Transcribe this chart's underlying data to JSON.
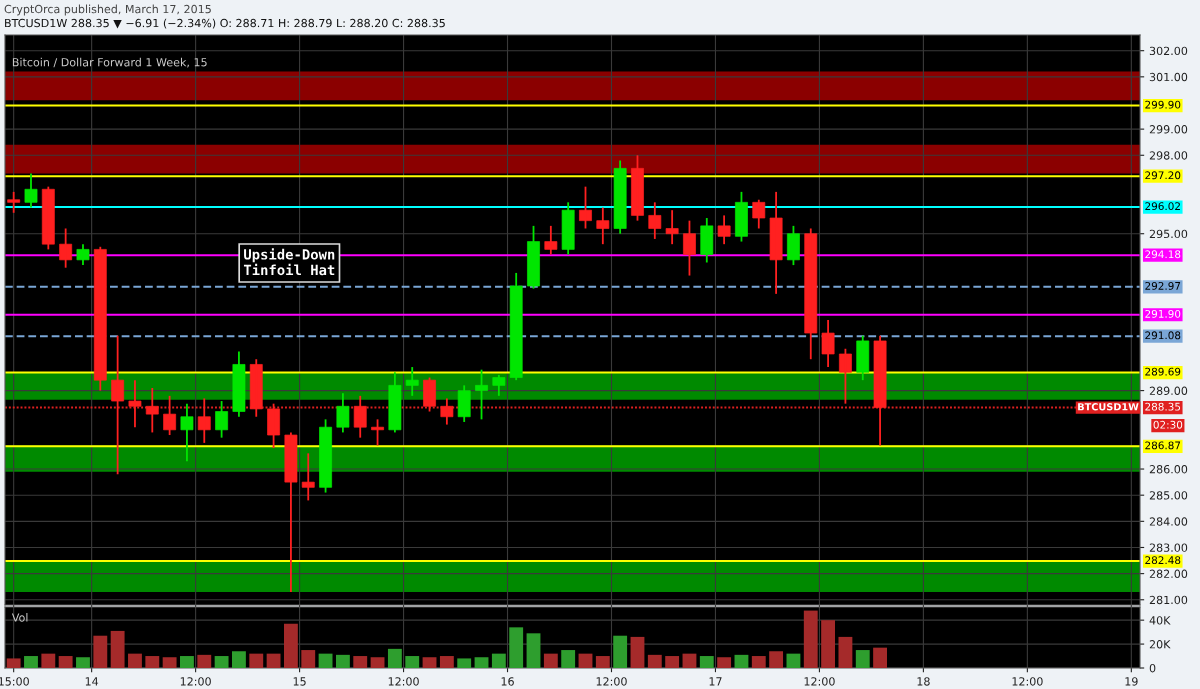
{
  "chart_data": [
    {
      "type": "candlestick",
      "title": "Bitcoin / Dollar Forward 1 Week, 15",
      "subtitle": "BTCUSD1W 288.35 ▼ −6.91 (−2.34%) O: 288.71 H: 288.79 L: 288.20 C: 288.35",
      "annotations": [
        "Upside-Down\nTinfoil Hat",
        "02:30",
        "CryptOrca published, March 17, 2015",
        "BTCUSD1W"
      ],
      "x": [
        "2015-03-13T15:00",
        "2015-03-13T17:00",
        "2015-03-13T19:00",
        "2015-03-13T21:00",
        "2015-03-13T23:00",
        "2015-03-14T01:00",
        "2015-03-14T03:00",
        "2015-03-14T05:00",
        "2015-03-14T07:00",
        "2015-03-14T09:00",
        "2015-03-14T11:00",
        "2015-03-14T13:00",
        "2015-03-14T15:00",
        "2015-03-14T17:00",
        "2015-03-14T19:00",
        "2015-03-14T21:00",
        "2015-03-14T23:00",
        "2015-03-15T01:00",
        "2015-03-15T03:00",
        "2015-03-15T05:00",
        "2015-03-15T07:00",
        "2015-03-15T09:00",
        "2015-03-15T11:00",
        "2015-03-15T13:00",
        "2015-03-15T15:00",
        "2015-03-15T17:00",
        "2015-03-15T19:00",
        "2015-03-15T21:00",
        "2015-03-15T23:00",
        "2015-03-16T01:00",
        "2015-03-16T03:00",
        "2015-03-16T05:00",
        "2015-03-16T07:00",
        "2015-03-16T09:00",
        "2015-03-16T11:00",
        "2015-03-16T13:00",
        "2015-03-16T15:00",
        "2015-03-16T17:00",
        "2015-03-16T19:00",
        "2015-03-16T21:00",
        "2015-03-16T23:00",
        "2015-03-17T01:00",
        "2015-03-17T03:00",
        "2015-03-17T05:00",
        "2015-03-17T07:00",
        "2015-03-17T09:00",
        "2015-03-17T11:00",
        "2015-03-17T13:00",
        "2015-03-17T15:00",
        "2015-03-17T17:00",
        "2015-03-17T19:00"
      ],
      "ohlc": [
        [
          296.3,
          296.6,
          295.8,
          296.2
        ],
        [
          296.2,
          297.3,
          296.0,
          296.7
        ],
        [
          296.7,
          296.8,
          294.4,
          294.6
        ],
        [
          294.6,
          295.2,
          293.7,
          294.0
        ],
        [
          294.0,
          294.6,
          293.8,
          294.4
        ],
        [
          294.4,
          294.5,
          289.0,
          289.4
        ],
        [
          289.4,
          291.1,
          285.8,
          288.6
        ],
        [
          288.6,
          289.4,
          287.6,
          288.4
        ],
        [
          288.4,
          289.1,
          287.4,
          288.1
        ],
        [
          288.1,
          288.8,
          287.3,
          287.5
        ],
        [
          287.5,
          288.5,
          286.3,
          288.0
        ],
        [
          288.0,
          288.7,
          287.0,
          287.5
        ],
        [
          287.5,
          288.6,
          287.2,
          288.2
        ],
        [
          288.2,
          290.5,
          288.0,
          290.0
        ],
        [
          290.0,
          290.2,
          288.0,
          288.3
        ],
        [
          288.3,
          288.5,
          286.8,
          287.3
        ],
        [
          287.3,
          287.4,
          281.3,
          285.5
        ],
        [
          285.5,
          286.6,
          284.8,
          285.3
        ],
        [
          285.3,
          287.9,
          285.1,
          287.6
        ],
        [
          287.6,
          288.9,
          287.4,
          288.4
        ],
        [
          288.4,
          288.8,
          287.2,
          287.6
        ],
        [
          287.6,
          287.9,
          286.9,
          287.5
        ],
        [
          287.5,
          289.7,
          287.4,
          289.2
        ],
        [
          289.2,
          289.9,
          288.8,
          289.4
        ],
        [
          289.4,
          289.5,
          288.2,
          288.4
        ],
        [
          288.4,
          288.7,
          287.7,
          288.0
        ],
        [
          288.0,
          289.2,
          287.8,
          289.0
        ],
        [
          289.0,
          289.8,
          287.9,
          289.2
        ],
        [
          289.2,
          289.6,
          288.8,
          289.5
        ],
        [
          289.5,
          293.5,
          289.4,
          293.0
        ],
        [
          293.0,
          295.3,
          292.9,
          294.7
        ],
        [
          294.7,
          295.3,
          294.2,
          294.4
        ],
        [
          294.4,
          296.2,
          294.2,
          295.9
        ],
        [
          295.9,
          296.8,
          295.2,
          295.5
        ],
        [
          295.5,
          296.0,
          294.6,
          295.2
        ],
        [
          295.2,
          297.8,
          295.0,
          297.5
        ],
        [
          297.5,
          298.0,
          295.5,
          295.7
        ],
        [
          295.7,
          296.2,
          294.8,
          295.2
        ],
        [
          295.2,
          295.9,
          294.6,
          295.0
        ],
        [
          295.0,
          295.5,
          293.4,
          294.2
        ],
        [
          294.2,
          295.6,
          293.9,
          295.3
        ],
        [
          295.3,
          295.7,
          294.6,
          294.9
        ],
        [
          294.9,
          296.6,
          294.7,
          296.2
        ],
        [
          296.2,
          296.3,
          295.2,
          295.6
        ],
        [
          295.6,
          296.6,
          292.7,
          294.0
        ],
        [
          294.0,
          295.3,
          293.8,
          295.0
        ],
        [
          295.0,
          295.2,
          290.2,
          291.2
        ],
        [
          291.2,
          291.7,
          289.9,
          290.4
        ],
        [
          290.4,
          290.6,
          288.5,
          289.7
        ],
        [
          289.7,
          291.1,
          289.4,
          290.9
        ],
        [
          290.9,
          291.1,
          286.9,
          288.35
        ]
      ],
      "colors": [
        "#ff2020",
        "#00e600",
        "#ff2020",
        "#ff2020",
        "#00e600",
        "#ff2020",
        "#ff2020",
        "#ff2020",
        "#ff2020",
        "#ff2020",
        "#00e600",
        "#ff2020",
        "#00e600",
        "#00e600",
        "#ff2020",
        "#ff2020",
        "#ff2020",
        "#ff2020",
        "#00e600",
        "#00e600",
        "#ff2020",
        "#ff2020",
        "#00e600",
        "#00e600",
        "#ff2020",
        "#ff2020",
        "#00e600",
        "#00e600",
        "#00e600",
        "#00e600",
        "#00e600",
        "#ff2020",
        "#00e600",
        "#ff2020",
        "#ff2020",
        "#00e600",
        "#ff2020",
        "#ff2020",
        "#ff2020",
        "#ff2020",
        "#00e600",
        "#ff2020",
        "#00e600",
        "#ff2020",
        "#ff2020",
        "#00e600",
        "#ff2020",
        "#ff2020",
        "#ff2020",
        "#00e600",
        "#ff2020"
      ],
      "xlim": [
        "2015-03-13T14:00",
        "2015-03-19T01:00"
      ],
      "xticks": [
        {
          "value": "2015-03-13T15:00",
          "label": null
        },
        {
          "value": "2015-03-14",
          "label": null
        },
        {
          "value": "2015-03-14T12:00",
          "label": null
        },
        {
          "value": "2015-03-15",
          "label": null
        },
        {
          "value": "2015-03-15T12:00",
          "label": null
        },
        {
          "value": "2015-03-16",
          "label": null
        },
        {
          "value": "2015-03-16T12:00",
          "label": null
        },
        {
          "value": "2015-03-17",
          "label": null
        },
        {
          "value": "2015-03-17T12:00",
          "label": null
        },
        {
          "value": "2015-03-18",
          "label": null
        },
        {
          "value": "2015-03-18T12:00",
          "label": null
        },
        {
          "value": "2015-03-19",
          "label": null
        }
      ],
      "ylim": [
        280.8,
        302.6
      ],
      "yticks": [
        {
          "value": 281,
          "label": "281.00"
        },
        {
          "value": 282,
          "label": "282.00"
        },
        {
          "value": 283,
          "label": "283.00"
        },
        {
          "value": 284,
          "label": "284.00"
        },
        {
          "value": 285,
          "label": "285.00"
        },
        {
          "value": 286,
          "label": "286.00"
        },
        {
          "value": 289,
          "label": "289.00"
        },
        {
          "value": 295,
          "label": "295.00"
        },
        {
          "value": 298,
          "label": "298.00"
        },
        {
          "value": 299,
          "label": "299.00"
        },
        {
          "value": 301,
          "label": "301.00"
        },
        {
          "value": 302,
          "label": "302.00"
        }
      ],
      "tick_labels": "y",
      "grid": true,
      "bands": [
        {
          "axis": "y",
          "from": 300.1,
          "to": 301.2,
          "color": "#8b0000"
        },
        {
          "axis": "y",
          "from": 297.3,
          "to": 298.4,
          "color": "#8b0000"
        },
        {
          "axis": "y",
          "from": 288.65,
          "to": 289.7,
          "color": "#008a00"
        },
        {
          "axis": "y",
          "from": 285.9,
          "to": 286.9,
          "color": "#008a00"
        },
        {
          "axis": "y",
          "from": 281.3,
          "to": 282.5,
          "color": "#008a00"
        }
      ],
      "ref_lines": [
        {
          "axis": "y",
          "value": 299.9,
          "label": "299.90",
          "color": "#ffff00",
          "line_style": "solid"
        },
        {
          "axis": "y",
          "value": 297.2,
          "label": "297.20",
          "color": "#ffff00",
          "line_style": "solid"
        },
        {
          "axis": "y",
          "value": 296.02,
          "label": "296.02",
          "color": "#00ffff",
          "line_style": "solid"
        },
        {
          "axis": "y",
          "value": 294.18,
          "label": "294.18",
          "color": "#ff00ff",
          "line_style": "solid"
        },
        {
          "axis": "y",
          "value": 292.97,
          "label": "292.97",
          "color": "#7aa6d6",
          "line_style": "dashed"
        },
        {
          "axis": "y",
          "value": 291.9,
          "label": "291.90",
          "color": "#ff00ff",
          "line_style": "solid"
        },
        {
          "axis": "y",
          "value": 291.08,
          "label": "291.08",
          "color": "#7aa6d6",
          "line_style": "dashed"
        },
        {
          "axis": "y",
          "value": 289.69,
          "label": "289.69",
          "color": "#ffff00",
          "line_style": "solid"
        },
        {
          "axis": "y",
          "value": 288.35,
          "label": "288.35",
          "color": "#e02020",
          "line_style": "dotted"
        },
        {
          "axis": "y",
          "value": 286.87,
          "label": "286.87",
          "color": "#ffff00",
          "line_style": "solid"
        },
        {
          "axis": "y",
          "value": 282.48,
          "label": "282.48",
          "color": "#ffff00",
          "line_style": "solid"
        }
      ]
    },
    {
      "type": "bar",
      "title": "Vol",
      "x": [
        "2015-03-13T15:00",
        "2015-03-13T17:00",
        "2015-03-13T19:00",
        "2015-03-13T21:00",
        "2015-03-13T23:00",
        "2015-03-14T01:00",
        "2015-03-14T03:00",
        "2015-03-14T05:00",
        "2015-03-14T07:00",
        "2015-03-14T09:00",
        "2015-03-14T11:00",
        "2015-03-14T13:00",
        "2015-03-14T15:00",
        "2015-03-14T17:00",
        "2015-03-14T19:00",
        "2015-03-14T21:00",
        "2015-03-14T23:00",
        "2015-03-15T01:00",
        "2015-03-15T03:00",
        "2015-03-15T05:00",
        "2015-03-15T07:00",
        "2015-03-15T09:00",
        "2015-03-15T11:00",
        "2015-03-15T13:00",
        "2015-03-15T15:00",
        "2015-03-15T17:00",
        "2015-03-15T19:00",
        "2015-03-15T21:00",
        "2015-03-15T23:00",
        "2015-03-16T01:00",
        "2015-03-16T03:00",
        "2015-03-16T05:00",
        "2015-03-16T07:00",
        "2015-03-16T09:00",
        "2015-03-16T11:00",
        "2015-03-16T13:00",
        "2015-03-16T15:00",
        "2015-03-16T17:00",
        "2015-03-16T19:00",
        "2015-03-16T21:00",
        "2015-03-16T23:00",
        "2015-03-17T01:00",
        "2015-03-17T03:00",
        "2015-03-17T05:00",
        "2015-03-17T07:00",
        "2015-03-17T09:00",
        "2015-03-17T11:00",
        "2015-03-17T13:00",
        "2015-03-17T15:00",
        "2015-03-17T17:00",
        "2015-03-17T19:00"
      ],
      "values": [
        8000,
        10000,
        12000,
        10000,
        9000,
        27000,
        31000,
        12000,
        10000,
        9000,
        10000,
        11000,
        10000,
        14000,
        12000,
        12000,
        37000,
        15000,
        12000,
        11000,
        10000,
        9000,
        16000,
        10000,
        9000,
        10000,
        8000,
        9000,
        12000,
        34000,
        29000,
        12000,
        15000,
        12000,
        10000,
        27000,
        26000,
        11000,
        10000,
        12000,
        10000,
        9000,
        11000,
        10000,
        14000,
        12000,
        48000,
        40000,
        26000,
        15000,
        17000
      ],
      "colors": [
        "#a52a2a",
        "#2e9e2e",
        "#a52a2a",
        "#a52a2a",
        "#2e9e2e",
        "#a52a2a",
        "#a52a2a",
        "#a52a2a",
        "#a52a2a",
        "#a52a2a",
        "#2e9e2e",
        "#a52a2a",
        "#2e9e2e",
        "#2e9e2e",
        "#a52a2a",
        "#a52a2a",
        "#a52a2a",
        "#a52a2a",
        "#2e9e2e",
        "#2e9e2e",
        "#a52a2a",
        "#a52a2a",
        "#2e9e2e",
        "#2e9e2e",
        "#a52a2a",
        "#a52a2a",
        "#2e9e2e",
        "#2e9e2e",
        "#2e9e2e",
        "#2e9e2e",
        "#2e9e2e",
        "#a52a2a",
        "#2e9e2e",
        "#a52a2a",
        "#a52a2a",
        "#2e9e2e",
        "#a52a2a",
        "#a52a2a",
        "#a52a2a",
        "#a52a2a",
        "#2e9e2e",
        "#a52a2a",
        "#2e9e2e",
        "#a52a2a",
        "#a52a2a",
        "#2e9e2e",
        "#a52a2a",
        "#a52a2a",
        "#a52a2a",
        "#2e9e2e",
        "#a52a2a"
      ],
      "xlim": [
        "2015-03-13T14:00",
        "2015-03-19T01:00"
      ],
      "xticks": [
        {
          "value": "2015-03-13T15:00",
          "label": "15:00"
        },
        {
          "value": "2015-03-14",
          "label": "14"
        },
        {
          "value": "2015-03-14T12:00",
          "label": "12:00"
        },
        {
          "value": "2015-03-15",
          "label": "15"
        },
        {
          "value": "2015-03-15T12:00",
          "label": "12:00"
        },
        {
          "value": "2015-03-16",
          "label": "16"
        },
        {
          "value": "2015-03-16T12:00",
          "label": "12:00"
        },
        {
          "value": "2015-03-17",
          "label": "17"
        },
        {
          "value": "2015-03-17T12:00",
          "label": "12:00"
        },
        {
          "value": "2015-03-18",
          "label": "18"
        },
        {
          "value": "2015-03-18T12:00",
          "label": "12:00"
        },
        {
          "value": "2015-03-19",
          "label": "19"
        }
      ],
      "ylim": [
        0,
        51000
      ],
      "yticks": [
        0,
        {
          "value": 20000,
          "label": "20K"
        },
        {
          "value": 40000,
          "label": "40K"
        }
      ],
      "grid": true
    }
  ]
}
